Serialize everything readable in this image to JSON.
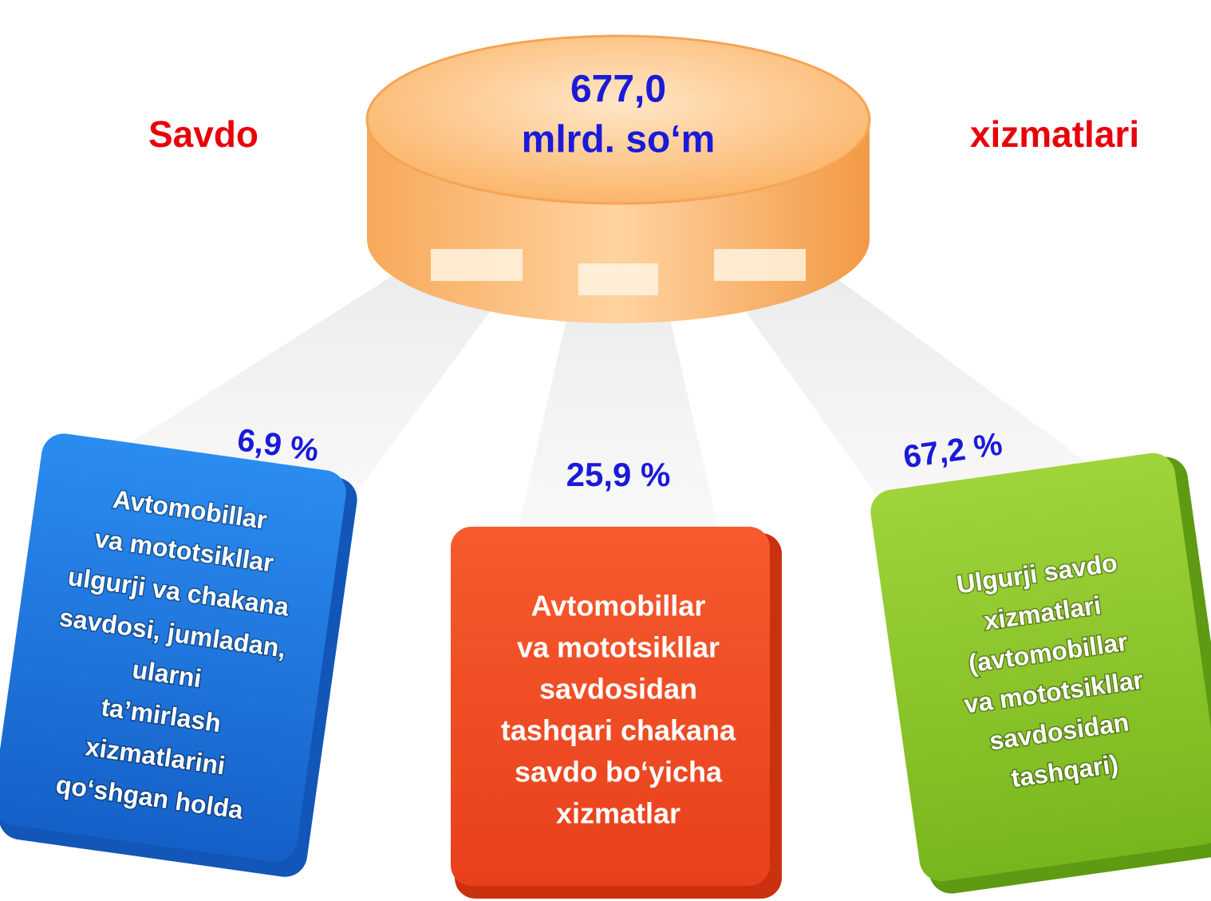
{
  "header": {
    "left": "Savdo",
    "right": "xizmatlari"
  },
  "center": {
    "value": "677,0",
    "unit": "mlrd. so‘m"
  },
  "nodes": [
    {
      "percent": "6,9 %",
      "lines": [
        "Avtomobillar",
        "va mototsikllar",
        "ulgurji va chakana",
        "savdosi, jumladan,",
        "ularni",
        "ta’mirlash",
        "xizmatlarini",
        "qo‘shgan holda"
      ]
    },
    {
      "percent": "25,9 %",
      "lines": [
        "Avtomobillar",
        "va mototsikllar",
        "savdosidan",
        "tashqari chakana",
        "savdo bo‘yicha",
        "xizmatlar"
      ]
    },
    {
      "percent": "67,2 %",
      "lines": [
        "Ulgurji savdo",
        "xizmatlari",
        "(avtomobillar",
        "va mototsikllar",
        "savdosidan",
        "tashqari)"
      ]
    }
  ]
}
